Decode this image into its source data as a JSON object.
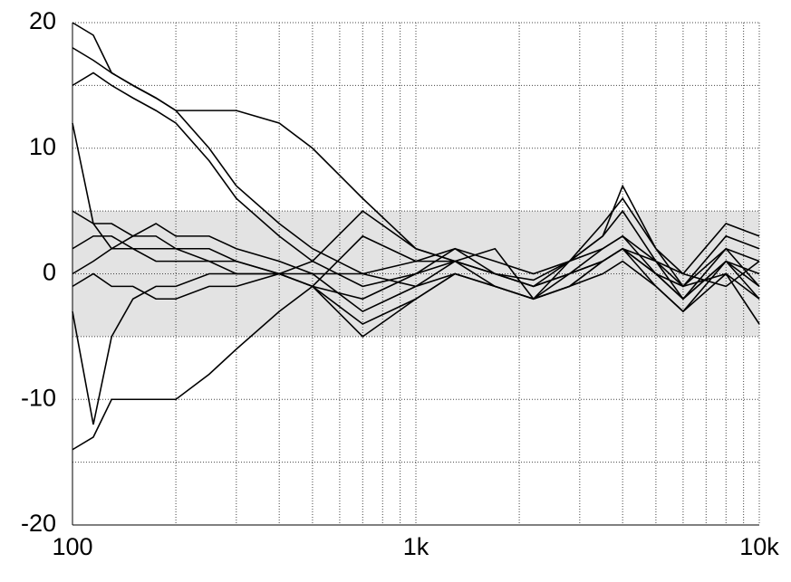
{
  "chart_data": {
    "type": "line",
    "x": [
      100,
      115,
      130,
      150,
      175,
      200,
      250,
      300,
      400,
      500,
      700,
      1000,
      1300,
      1700,
      2200,
      2800,
      3500,
      4000,
      5000,
      6000,
      8000,
      10000
    ],
    "series": [
      {
        "color": "#000000",
        "values": [
          20,
          19,
          16,
          15,
          14,
          13,
          13,
          13,
          12,
          10,
          6,
          2,
          1,
          0,
          -0.5,
          1,
          4,
          6,
          2,
          0,
          -1,
          1
        ]
      },
      {
        "color": "#000000",
        "values": [
          18,
          17,
          16,
          15,
          14,
          13,
          10,
          7,
          4,
          2,
          0,
          -1,
          0,
          -1,
          -2,
          1,
          3,
          5,
          1,
          -1,
          0,
          -2
        ]
      },
      {
        "color": "#000000",
        "values": [
          15,
          16,
          15,
          14,
          13,
          12,
          9,
          6,
          3,
          1,
          -1,
          0,
          1,
          0,
          -1,
          0,
          2,
          3,
          0,
          -2,
          1,
          0
        ]
      },
      {
        "color": "#000000",
        "values": [
          -14,
          -13,
          -10,
          -10,
          -10,
          -10,
          -8,
          -6,
          -3,
          -1,
          3,
          1,
          2,
          0,
          -1,
          1,
          2,
          3,
          1,
          -2,
          2,
          -1
        ]
      },
      {
        "color": "#000000",
        "values": [
          -3,
          -12,
          -5,
          -2,
          -1,
          -1,
          0,
          0,
          0,
          -1,
          -4,
          -2,
          0,
          -1,
          -2,
          0,
          1,
          2,
          -1,
          -3,
          0,
          -4
        ]
      },
      {
        "color": "#000000",
        "values": [
          5,
          4,
          4,
          3,
          3,
          2,
          2,
          1,
          0,
          -1,
          -5,
          -2,
          0,
          -1,
          -2,
          -1,
          1,
          2,
          0,
          -2,
          1,
          -2
        ]
      },
      {
        "color": "#000000",
        "values": [
          2,
          3,
          3,
          2,
          2,
          2,
          1,
          1,
          0,
          1,
          5,
          2,
          1,
          0,
          -1,
          0,
          1,
          2,
          0,
          -1,
          2,
          1
        ]
      },
      {
        "color": "#000000",
        "values": [
          0,
          1,
          2,
          2,
          1,
          1,
          1,
          0,
          0,
          0,
          0,
          1,
          1,
          -1,
          -2,
          -1,
          0,
          1,
          -1,
          -3,
          1,
          -1
        ]
      },
      {
        "color": "#000000",
        "values": [
          -1,
          0,
          -1,
          -1,
          -2,
          -2,
          -1,
          -1,
          0,
          -1,
          -2,
          0,
          2,
          1,
          0,
          1,
          3,
          7,
          2,
          -1,
          3,
          2
        ]
      },
      {
        "color": "#000000",
        "values": [
          12,
          4,
          2,
          3,
          4,
          3,
          3,
          2,
          1,
          0,
          -3,
          -1,
          1,
          2,
          -2,
          -1,
          1,
          2,
          1,
          0,
          4,
          3
        ]
      }
    ],
    "xlog": true,
    "xlim": [
      100,
      10000
    ],
    "xticks": [
      100,
      {
        "value": 1000,
        "label": "1k"
      },
      {
        "value": 10000,
        "label": "10k"
      }
    ],
    "xminor": [
      200,
      300,
      400,
      500,
      600,
      700,
      800,
      900,
      2000,
      3000,
      4000,
      5000,
      6000,
      7000,
      8000,
      9000
    ],
    "ylim": [
      -20,
      20
    ],
    "yticks": [
      -20,
      -10,
      0,
      10,
      20
    ],
    "yminor": [
      -15,
      -5,
      5,
      15
    ],
    "band": [
      -5,
      5
    ],
    "band_color": "#e3e3e3",
    "grid": true
  }
}
